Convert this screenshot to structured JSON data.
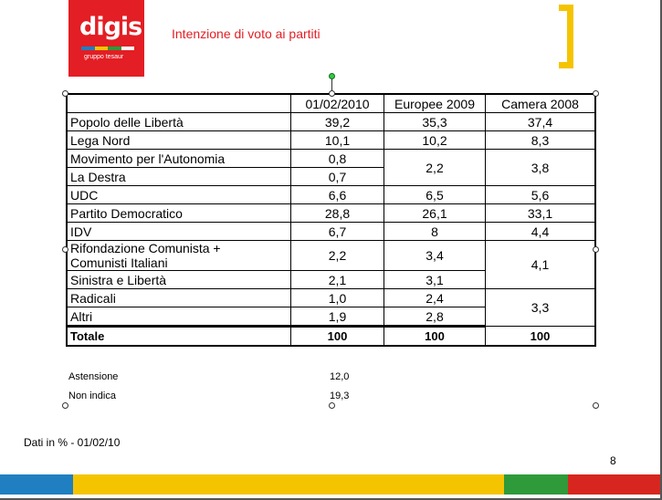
{
  "logo": {
    "text": "digis",
    "subtext": "gruppo tesaur"
  },
  "slide_title": "Intenzione di voto ai partiti",
  "table": {
    "columns": [
      "",
      "01/02/2010",
      "Europee 2009",
      "Camera 2008"
    ],
    "rows": [
      {
        "party": "Popolo delle Libertà",
        "v2010": "39,2",
        "e2009": "35,3",
        "c2008": "37,4"
      },
      {
        "party": "Lega Nord",
        "v2010": "10,1",
        "e2009": "10,2",
        "c2008": "8,3"
      },
      {
        "party": "Movimento per l'Autonomia",
        "v2010": "0,8",
        "e2009": "2,2",
        "c2008": "3,8"
      },
      {
        "party": "La Destra",
        "v2010": "0,7"
      },
      {
        "party": "UDC",
        "v2010": "6,6",
        "e2009": "6,5",
        "c2008": "5,6"
      },
      {
        "party": "Partito Democratico",
        "v2010": "28,8",
        "e2009": "26,1",
        "c2008": "33,1"
      },
      {
        "party": "IDV",
        "v2010": "6,7",
        "e2009": "8",
        "c2008": "4,4"
      },
      {
        "party_line1": "Rifondazione Comunista +",
        "party_line2": "Comunisti Italiani",
        "v2010": "2,2",
        "e2009": "3,4",
        "c2008": "4,1"
      },
      {
        "party": "Sinistra e Libertà",
        "v2010": "2,1",
        "e2009": "3,1"
      },
      {
        "party": "Radicali",
        "v2010": "1,0",
        "e2009": "2,4",
        "c2008": "3,3"
      },
      {
        "party": "Altri",
        "v2010": "1,9",
        "e2009": "2,8"
      },
      {
        "party": "Totale",
        "v2010": "100",
        "e2009": "100",
        "c2008": "100"
      }
    ]
  },
  "extra": {
    "astensione_label": "Astensione",
    "astensione_value": "12,0",
    "nonindica_label": "Non indica",
    "nonindica_value": "19,3"
  },
  "footer_note": "Dati in % - 01/02/10",
  "page_number": "8",
  "colors": {
    "brand_red": "#e31e24",
    "yellow": "#f5c400",
    "blue": "#1f7fc1",
    "green": "#2e9a3a",
    "red": "#d7261f"
  }
}
